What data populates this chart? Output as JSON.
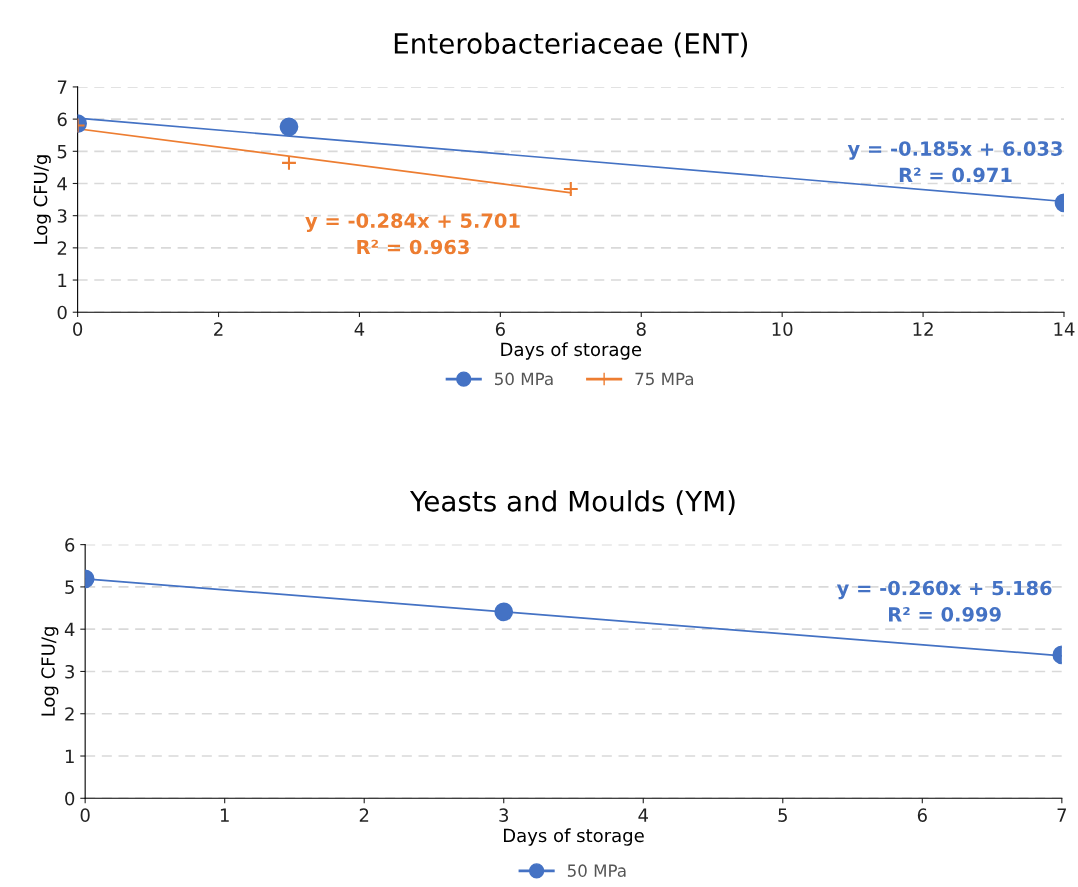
{
  "chart_data": [
    {
      "type": "scatter",
      "title": "Enterobacteriaceae (ENT)",
      "xlabel": "Days of storage",
      "ylabel": "Log CFU/g",
      "xlim": [
        0,
        14
      ],
      "xticks": [
        0,
        2,
        4,
        6,
        8,
        10,
        12,
        14
      ],
      "ylim": [
        0,
        7
      ],
      "yticks": [
        0,
        1,
        2,
        3,
        4,
        5,
        6,
        7
      ],
      "grid": "y",
      "legend": "bottom",
      "series": [
        {
          "name": "50 MPa",
          "color": "#4472c4",
          "marker": "circle",
          "x": [
            0,
            3,
            14
          ],
          "values": [
            5.86,
            5.76,
            3.4
          ]
        },
        {
          "name": "75 MPa",
          "color": "#ed7d31",
          "marker": "cross",
          "x": [
            0,
            3,
            7
          ],
          "values": [
            5.8,
            4.64,
            3.83
          ]
        },
        {
          "type": "line",
          "color": "#4472c4",
          "x": [
            0,
            14
          ],
          "values": [
            6.03,
            3.44
          ]
        },
        {
          "type": "line",
          "color": "#ed7d31",
          "x": [
            0,
            7
          ],
          "values": [
            5.7,
            3.71
          ]
        }
      ],
      "annotations": [
        "y = -0.185x + 6.033\nR² = 0.971",
        "y = -0.284x + 5.701\nR² = 0.963"
      ]
    },
    {
      "type": "scatter",
      "title": "Yeasts and Moulds (YM)",
      "xlabel": "Days of storage",
      "ylabel": "Log CFU/g",
      "xlim": [
        0,
        7
      ],
      "xticks": [
        0,
        1,
        2,
        3,
        4,
        5,
        6,
        7
      ],
      "ylim": [
        0,
        6
      ],
      "yticks": [
        0,
        1,
        2,
        3,
        4,
        5,
        6
      ],
      "grid": "y",
      "legend": "bottom",
      "series": [
        {
          "name": "50 MPa",
          "color": "#4472c4",
          "marker": "circle",
          "x": [
            0,
            3,
            7
          ],
          "values": [
            5.19,
            4.41,
            3.39
          ]
        },
        {
          "type": "line",
          "color": "#4472c4",
          "x": [
            0,
            7
          ],
          "values": [
            5.19,
            3.37
          ]
        }
      ],
      "annotations": [
        "y = -0.260x + 5.186\nR² = 0.999"
      ]
    }
  ]
}
